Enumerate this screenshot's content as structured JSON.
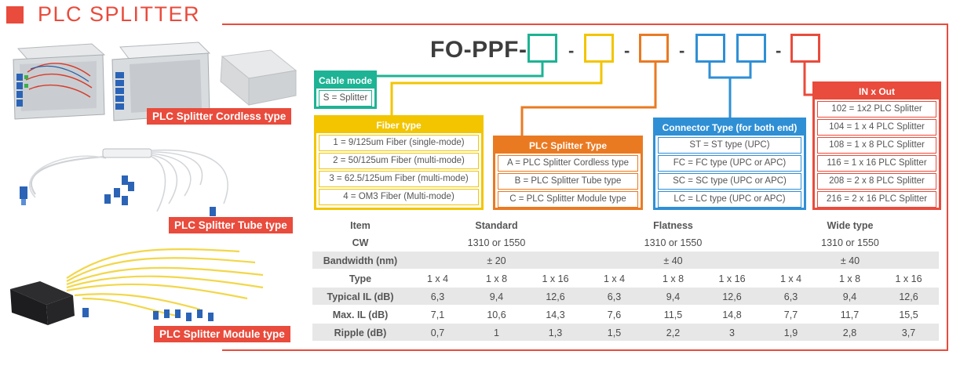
{
  "header": {
    "title": "PLC SPLITTER"
  },
  "products": [
    {
      "label": "PLC Splitter Cordless type"
    },
    {
      "label": "PLC Splitter Tube type"
    },
    {
      "label": "PLC Splitter Module type"
    }
  ],
  "code": {
    "prefix": "FO-PPF-",
    "separator": "-"
  },
  "cable_mode": {
    "title": "Cable mode",
    "options": [
      "S = Splitter"
    ]
  },
  "fiber_type": {
    "title": "Fiber type",
    "options": [
      "1 = 9/125um Fiber (single-mode)",
      "2 = 50/125um Fiber (multi-mode)",
      "3 = 62.5/125um Fiber (multi-mode)",
      "4 = OM3 Fiber (Multi-mode)"
    ]
  },
  "splitter_type": {
    "title": "PLC Splitter Type",
    "options": [
      "A = PLC Splitter Cordless type",
      "B = PLC Splitter Tube type",
      "C = PLC Splitter Module type"
    ]
  },
  "connector_type": {
    "title": "Connector Type (for both end)",
    "options": [
      "ST = ST type (UPC)",
      "FC = FC type (UPC or APC)",
      "SC = SC type (UPC or APC)",
      "LC = LC type (UPC or APC)"
    ]
  },
  "in_out": {
    "title": "IN x Out",
    "options": [
      "102 = 1x2 PLC Splitter",
      "104 = 1 x 4 PLC Splitter",
      "108 = 1 x 8 PLC Splitter",
      "116 = 1 x 16 PLC Splitter",
      "208 = 2 x 8 PLC Splitter",
      "216 = 2 x 16 PLC Splitter"
    ]
  },
  "colors": {
    "accent": "#e94b3c",
    "teal": "#1db394",
    "yellow": "#f2c500",
    "orange": "#ea7a22",
    "blue": "#2f8fd5",
    "red": "#e94b3c"
  },
  "spec_table": {
    "item_label": "Item",
    "groups": [
      "Standard",
      "Flatness",
      "Wide type"
    ],
    "cw_label": "CW",
    "cw": [
      "1310 or 1550",
      "1310 or 1550",
      "1310 or 1550"
    ],
    "bandwidth_label": "Bandwidth (nm)",
    "bandwidth": [
      "± 20",
      "± 40",
      "± 40"
    ],
    "type_label": "Type",
    "types": [
      "1 x 4",
      "1 x 8",
      "1 x 16",
      "1 x 4",
      "1 x 8",
      "1 x 16",
      "1 x 4",
      "1 x 8",
      "1 x 16"
    ],
    "rows": [
      {
        "label": "Typical IL (dB)",
        "values": [
          "6,3",
          "9,4",
          "12,6",
          "6,3",
          "9,4",
          "12,6",
          "6,3",
          "9,4",
          "12,6"
        ]
      },
      {
        "label": "Max. IL (dB)",
        "values": [
          "7,1",
          "10,6",
          "14,3",
          "7,6",
          "11,5",
          "14,8",
          "7,7",
          "11,7",
          "15,5"
        ]
      },
      {
        "label": "Ripple (dB)",
        "values": [
          "0,7",
          "1",
          "1,3",
          "1,5",
          "2,2",
          "3",
          "1,9",
          "2,8",
          "3,7"
        ]
      }
    ]
  }
}
